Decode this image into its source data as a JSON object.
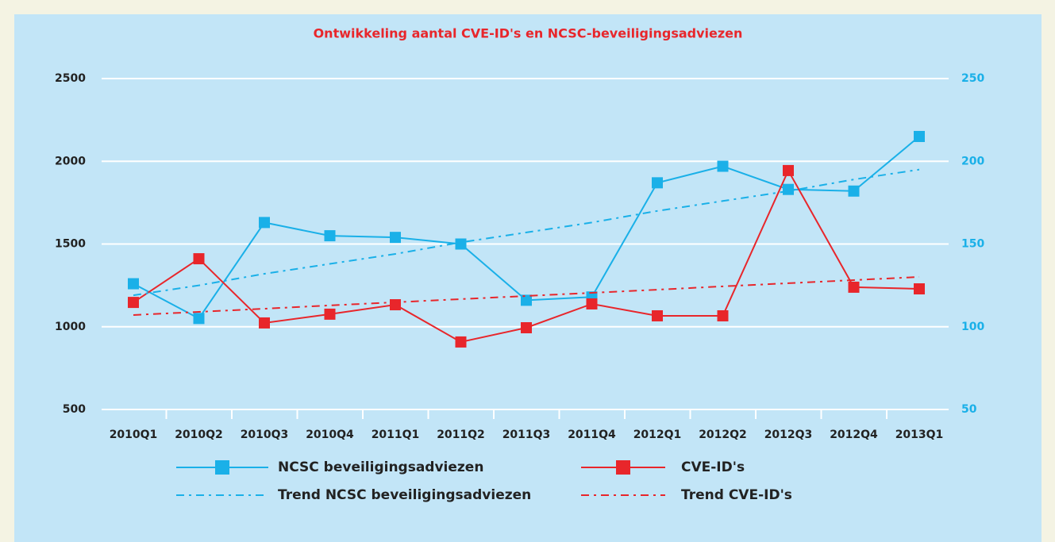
{
  "chart_data": {
    "type": "line",
    "title": "Ontwikkeling aantal CVE-ID's en NCSC-beveiligingsadviezen",
    "categories": [
      "2010Q1",
      "2010Q2",
      "2010Q3",
      "2010Q4",
      "2011Q1",
      "2011Q2",
      "2011Q3",
      "2011Q4",
      "2012Q1",
      "2012Q2",
      "2012Q3",
      "2012Q4",
      "2013Q1"
    ],
    "ylim": [
      500,
      2500
    ],
    "yticks": [
      500,
      1000,
      1500,
      2000,
      2500
    ],
    "y2lim": [
      50,
      250
    ],
    "y2ticks": [
      50,
      100,
      150,
      200,
      250
    ],
    "grid": true,
    "series": [
      {
        "name": "NCSC beveiligingsadviezen",
        "color": "#1ab0e8",
        "axis": "y2",
        "marker": "square",
        "dash": "solid",
        "values": [
          126,
          105,
          163,
          155,
          154,
          150,
          116,
          118,
          187,
          197,
          183,
          182,
          215
        ]
      },
      {
        "name": "CVE-ID's",
        "color": "#e8262b",
        "axis": "y",
        "marker": "square",
        "dash": "solid",
        "values": [
          1147,
          1411,
          1023,
          1076,
          1133,
          908,
          994,
          1138,
          1066,
          1066,
          1944,
          1239,
          1229
        ]
      },
      {
        "name": "Trend NCSC beveiligingsadviezen",
        "color": "#1ab0e8",
        "axis": "y2",
        "marker": "none",
        "dash": "dash-dot",
        "values": [
          119,
          125,
          132,
          138,
          144,
          151,
          157,
          163,
          170,
          176,
          182,
          189,
          195
        ]
      },
      {
        "name": "Trend CVE-ID's",
        "color": "#e8262b",
        "axis": "y",
        "marker": "none",
        "dash": "dash-dot",
        "values": [
          1071,
          1090,
          1109,
          1129,
          1148,
          1167,
          1186,
          1205,
          1224,
          1244,
          1263,
          1282,
          1301
        ]
      }
    ]
  }
}
